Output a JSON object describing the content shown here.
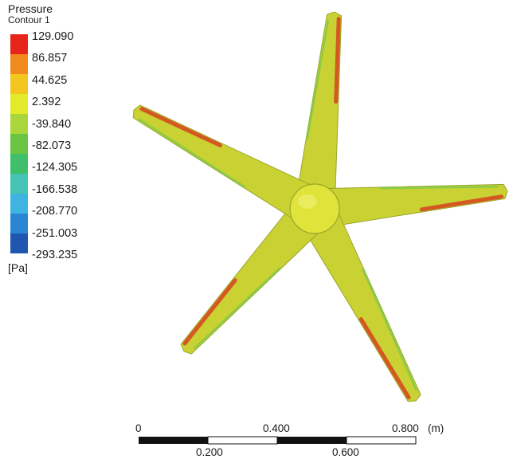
{
  "legend": {
    "title": "Pressure",
    "subtitle": "Contour 1",
    "unit": "[Pa]",
    "levels": [
      "129.090",
      "86.857",
      "44.625",
      "2.392",
      "-39.840",
      "-82.073",
      "-124.305",
      "-166.538",
      "-208.770",
      "-251.003",
      "-293.235"
    ],
    "colors": [
      "#e8251b",
      "#f08a1c",
      "#f2c61f",
      "#e3ea2a",
      "#a9d63a",
      "#6cc542",
      "#3fbf6a",
      "#45c4b6",
      "#3eb4e2",
      "#2a86d2",
      "#1f56b0"
    ]
  },
  "scale_bar": {
    "top_labels": [
      "0",
      "0.400",
      "0.800"
    ],
    "bottom_labels": [
      "0.200",
      "0.600"
    ],
    "unit": "(m)"
  },
  "scene": {
    "blade_color": "#c9d133",
    "hub_color": "#dfe33a",
    "high_pressure_color": "#d8421f",
    "low_pressure_color": "#7ccc4a"
  }
}
